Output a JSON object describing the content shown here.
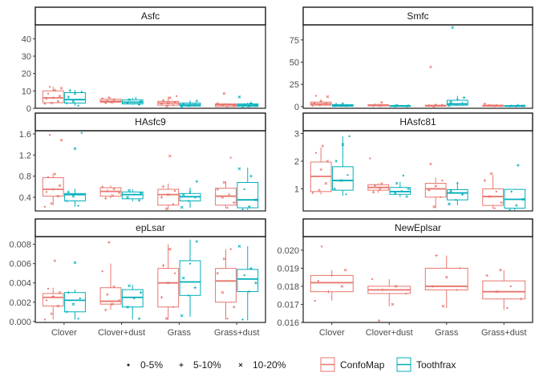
{
  "chart_data": {
    "type": "box",
    "categories": [
      "Clover",
      "Clover+dust",
      "Grass",
      "Grass+dust"
    ],
    "groups": [
      "ConfoMap",
      "Toothfrax"
    ],
    "group_colors": {
      "ConfoMap": "#E8766E",
      "Toothfrax": "#00AFBA"
    },
    "layout": "3 rows x 2 columns of facets, x labels on bottom row, legend bottom",
    "facets": [
      {
        "name": "Asfc",
        "ylim": [
          0,
          48
        ],
        "yticks": [
          "0",
          "10",
          "20",
          "30",
          "40"
        ],
        "boxes": {
          "ConfoMap": [
            {
              "category": "Clover",
              "q1": 3.2,
              "median": 6.0,
              "q3": 10.0,
              "lower": 2.5,
              "upper": 12.5,
              "points": [
                2.6,
                3.0,
                4.0,
                5.5,
                6.0,
                7.0,
                8.5,
                10.5,
                11.5,
                12.3
              ]
            },
            {
              "category": "Clover+dust",
              "q1": 3.5,
              "median": 4.0,
              "q3": 5.2,
              "lower": 3.0,
              "upper": 6.0,
              "points": [
                3.1,
                3.5,
                4.0,
                4.3,
                5.0,
                5.7,
                6.2
              ]
            },
            {
              "category": "Grass",
              "q1": 1.8,
              "median": 3.0,
              "q3": 4.0,
              "lower": 1.0,
              "upper": 6.5,
              "points": [
                1.2,
                1.8,
                2.5,
                3.0,
                3.5,
                4.5,
                6.0,
                7.0
              ]
            },
            {
              "category": "Grass+dust",
              "q1": 1.0,
              "median": 2.0,
              "q3": 2.5,
              "lower": 0.8,
              "upper": 3.0,
              "points": [
                0.9,
                1.5,
                2.0,
                2.2,
                2.8,
                8.5
              ]
            }
          ],
          "Toothfrax": [
            {
              "category": "Clover",
              "q1": 3.0,
              "median": 5.0,
              "q3": 9.0,
              "lower": 1.5,
              "upper": 10.5,
              "points": [
                1.5,
                3.0,
                4.0,
                5.0,
                6.5,
                8.5,
                9.5,
                10.2
              ]
            },
            {
              "category": "Clover+dust",
              "q1": 2.5,
              "median": 3.5,
              "q3": 4.8,
              "lower": 2.0,
              "upper": 6.0,
              "points": [
                2.2,
                3.0,
                3.5,
                4.0,
                5.0,
                5.8
              ]
            },
            {
              "category": "Grass",
              "q1": 1.3,
              "median": 2.0,
              "q3": 3.0,
              "lower": 0.8,
              "upper": 4.5,
              "points": [
                0.8,
                1.3,
                2.0,
                2.5,
                3.0,
                4.2
              ]
            },
            {
              "category": "Grass+dust",
              "q1": 1.0,
              "median": 1.8,
              "q3": 2.5,
              "lower": 0.5,
              "upper": 3.2,
              "points": [
                0.6,
                1.2,
                1.8,
                2.3,
                3.0,
                6.5
              ]
            }
          ]
        }
      },
      {
        "name": "Smfc",
        "ylim": [
          -2,
          92
        ],
        "yticks": [
          "0",
          "25",
          "50",
          "75"
        ],
        "boxes": {
          "ConfoMap": [
            {
              "category": "Clover",
              "q1": 1.5,
              "median": 3.0,
              "q3": 5.0,
              "lower": 0.5,
              "upper": 8.0,
              "points": [
                1.0,
                2.0,
                3.0,
                4.0,
                6.0,
                11.0,
                12.0
              ]
            },
            {
              "category": "Clover+dust",
              "q1": 0.8,
              "median": 1.2,
              "q3": 2.0,
              "lower": 0.5,
              "upper": 3.0,
              "points": [
                0.6,
                1.0,
                1.5,
                2.0,
                4.5
              ]
            },
            {
              "category": "Grass",
              "q1": 0.3,
              "median": 0.8,
              "q3": 1.5,
              "lower": 0.1,
              "upper": 2.5,
              "points": [
                0.2,
                0.8,
                1.2,
                1.6,
                2.0,
                44.5
              ]
            },
            {
              "category": "Grass+dust",
              "q1": 0.3,
              "median": 0.8,
              "q3": 1.5,
              "lower": 0.1,
              "upper": 2.5,
              "points": [
                0.2,
                0.8,
                1.2,
                1.8,
                3.0
              ]
            }
          ],
          "Toothfrax": [
            {
              "category": "Clover",
              "q1": 0.3,
              "median": 1.0,
              "q3": 2.0,
              "lower": 0.1,
              "upper": 3.5,
              "points": [
                0.3,
                0.8,
                1.2,
                1.8,
                2.5,
                3.0
              ]
            },
            {
              "category": "Clover+dust",
              "q1": 0.2,
              "median": 0.6,
              "q3": 1.0,
              "lower": 0.1,
              "upper": 1.5,
              "points": [
                0.2,
                0.5,
                0.7,
                1.0,
                1.3
              ]
            },
            {
              "category": "Grass",
              "q1": 1.5,
              "median": 3.0,
              "q3": 7.0,
              "lower": 0.5,
              "upper": 12.0,
              "points": [
                1.0,
                2.0,
                3.5,
                5.0,
                8.0,
                10.0,
                89.0
              ]
            },
            {
              "category": "Grass+dust",
              "q1": 0.2,
              "median": 0.6,
              "q3": 1.0,
              "lower": 0.1,
              "upper": 1.5,
              "points": [
                0.2,
                0.5,
                0.8,
                1.1,
                1.4
              ]
            }
          ]
        }
      },
      {
        "name": "HAsfc9",
        "ylim": [
          0.14,
          1.66
        ],
        "yticks": [
          "0.4",
          "0.8",
          "1.2",
          "1.6"
        ],
        "boxes": {
          "ConfoMap": [
            {
              "category": "Clover",
              "q1": 0.42,
              "median": 0.55,
              "q3": 0.77,
              "lower": 0.25,
              "upper": 0.85,
              "points": [
                0.22,
                0.28,
                0.42,
                0.5,
                0.55,
                0.62,
                0.78,
                0.84,
                1.48,
                1.58
              ]
            },
            {
              "category": "Clover+dust",
              "q1": 0.42,
              "median": 0.51,
              "q3": 0.58,
              "lower": 0.38,
              "upper": 0.62,
              "points": [
                0.38,
                0.43,
                0.48,
                0.52,
                0.56,
                0.6
              ]
            },
            {
              "category": "Grass",
              "q1": 0.25,
              "median": 0.45,
              "q3": 0.55,
              "lower": 0.17,
              "upper": 0.66,
              "points": [
                0.18,
                0.27,
                0.4,
                0.45,
                0.52,
                0.6,
                1.18
              ]
            },
            {
              "category": "Grass+dust",
              "q1": 0.25,
              "median": 0.42,
              "q3": 0.57,
              "lower": 0.19,
              "upper": 0.7,
              "points": [
                0.2,
                0.3,
                0.4,
                0.45,
                0.55,
                0.68,
                1.15
              ]
            }
          ],
          "Toothfrax": [
            {
              "category": "Clover",
              "q1": 0.33,
              "median": 0.45,
              "q3": 0.47,
              "lower": 0.22,
              "upper": 0.56,
              "points": [
                0.24,
                0.33,
                0.42,
                0.45,
                0.5,
                1.32,
                1.62
              ]
            },
            {
              "category": "Clover+dust",
              "q1": 0.37,
              "median": 0.45,
              "q3": 0.5,
              "lower": 0.32,
              "upper": 0.55,
              "points": [
                0.34,
                0.4,
                0.45,
                0.48,
                0.53
              ]
            },
            {
              "category": "Grass",
              "q1": 0.33,
              "median": 0.41,
              "q3": 0.47,
              "lower": 0.2,
              "upper": 0.58,
              "points": [
                0.21,
                0.33,
                0.4,
                0.45,
                0.5,
                0.7
              ]
            },
            {
              "category": "Grass+dust",
              "q1": 0.2,
              "median": 0.35,
              "q3": 0.68,
              "lower": 0.16,
              "upper": 0.96,
              "points": [
                0.17,
                0.22,
                0.35,
                0.55,
                0.8,
                0.94
              ]
            }
          ]
        }
      },
      {
        "name": "HAsfc81",
        "ylim": [
          0.2,
          3.1
        ],
        "yticks": [
          "1",
          "2",
          "3"
        ],
        "boxes": {
          "ConfoMap": [
            {
              "category": "Clover",
              "q1": 0.9,
              "median": 1.45,
              "q3": 1.97,
              "lower": 0.8,
              "upper": 2.5,
              "points": [
                0.85,
                0.95,
                1.2,
                1.45,
                1.7,
                2.0,
                2.3,
                2.55
              ]
            },
            {
              "category": "Clover+dust",
              "q1": 0.95,
              "median": 1.05,
              "q3": 1.15,
              "lower": 0.85,
              "upper": 1.2,
              "points": [
                0.88,
                0.98,
                1.05,
                1.12,
                1.18,
                2.1
              ]
            },
            {
              "category": "Grass",
              "q1": 0.7,
              "median": 1.0,
              "q3": 1.2,
              "lower": 0.3,
              "upper": 1.4,
              "points": [
                0.35,
                0.7,
                0.95,
                1.1,
                1.3,
                1.9
              ]
            },
            {
              "category": "Grass+dust",
              "q1": 0.4,
              "median": 0.72,
              "q3": 1.0,
              "lower": 0.28,
              "upper": 1.5,
              "points": [
                0.3,
                0.5,
                0.72,
                0.9,
                1.3,
                1.55
              ]
            }
          ],
          "Toothfrax": [
            {
              "category": "Clover",
              "q1": 0.95,
              "median": 1.3,
              "q3": 1.8,
              "lower": 0.75,
              "upper": 2.9,
              "points": [
                0.8,
                1.0,
                1.3,
                1.5,
                2.0,
                2.6,
                2.9
              ]
            },
            {
              "category": "Clover+dust",
              "q1": 0.8,
              "median": 0.9,
              "q3": 1.05,
              "lower": 0.7,
              "upper": 1.25,
              "points": [
                0.72,
                0.85,
                0.92,
                1.0,
                1.2,
                1.48
              ]
            },
            {
              "category": "Grass",
              "q1": 0.6,
              "median": 0.85,
              "q3": 0.97,
              "lower": 0.4,
              "upper": 1.25,
              "points": [
                0.45,
                0.6,
                0.8,
                0.92,
                1.2
              ]
            },
            {
              "category": "Grass+dust",
              "q1": 0.3,
              "median": 0.62,
              "q3": 0.98,
              "lower": 0.22,
              "upper": 1.0,
              "points": [
                0.24,
                0.4,
                0.62,
                0.9,
                1.85
              ]
            }
          ]
        }
      },
      {
        "name": "epLsar",
        "ylim": [
          -0.0001,
          0.0088
        ],
        "yticks": [
          "0.000",
          "0.002",
          "0.004",
          "0.006",
          "0.008"
        ],
        "boxes": {
          "ConfoMap": [
            {
              "category": "Clover",
              "q1": 0.0016,
              "median": 0.0025,
              "q3": 0.0029,
              "lower": 0.0002,
              "upper": 0.0035,
              "points": [
                0.0002,
                0.0008,
                0.0016,
                0.0022,
                0.0026,
                0.003,
                0.0034,
                0.0063
              ]
            },
            {
              "category": "Clover+dust",
              "q1": 0.0018,
              "median": 0.0021,
              "q3": 0.0035,
              "lower": 0.0012,
              "upper": 0.006,
              "points": [
                0.0012,
                0.0018,
                0.0022,
                0.0028,
                0.0036,
                0.0052,
                0.0082
              ]
            },
            {
              "category": "Grass",
              "q1": 0.0015,
              "median": 0.004,
              "q3": 0.0055,
              "lower": 0.0002,
              "upper": 0.008,
              "points": [
                0.0003,
                0.0015,
                0.0025,
                0.004,
                0.005,
                0.0058,
                0.0075
              ]
            },
            {
              "category": "Grass+dust",
              "q1": 0.002,
              "median": 0.0042,
              "q3": 0.0055,
              "lower": 0.0002,
              "upper": 0.0075,
              "points": [
                0.0003,
                0.0015,
                0.003,
                0.0042,
                0.005,
                0.0065,
                0.0075
              ]
            }
          ],
          "Toothfrax": [
            {
              "category": "Clover",
              "q1": 0.001,
              "median": 0.0022,
              "q3": 0.003,
              "lower": 0.0002,
              "upper": 0.0033,
              "points": [
                0.0003,
                0.001,
                0.0018,
                0.0024,
                0.003,
                0.0061
              ]
            },
            {
              "category": "Clover+dust",
              "q1": 0.0015,
              "median": 0.0025,
              "q3": 0.0033,
              "lower": 0.0002,
              "upper": 0.0038,
              "points": [
                0.0003,
                0.0015,
                0.0024,
                0.003,
                0.0037
              ]
            },
            {
              "category": "Grass",
              "q1": 0.0027,
              "median": 0.0041,
              "q3": 0.0063,
              "lower": 0.0005,
              "upper": 0.0085,
              "points": [
                0.0006,
                0.0027,
                0.0035,
                0.0045,
                0.006,
                0.0083
              ]
            },
            {
              "category": "Grass+dust",
              "q1": 0.0031,
              "median": 0.0044,
              "q3": 0.0054,
              "lower": 0.0001,
              "upper": 0.0078,
              "points": [
                0.0002,
                0.0031,
                0.004,
                0.0048,
                0.0055,
                0.0078
              ]
            }
          ]
        }
      },
      {
        "name": "NewEplsar",
        "ylim": [
          0.016,
          0.02075
        ],
        "yticks": [
          "0.016",
          "0.017",
          "0.018",
          "0.019",
          "0.020"
        ],
        "boxes": {
          "ConfoMap": [
            {
              "category": "Clover",
              "q1": 0.0177,
              "median": 0.0182,
              "q3": 0.0186,
              "lower": 0.0172,
              "upper": 0.0189,
              "points": [
                0.0172,
                0.0177,
                0.018,
                0.0183,
                0.0186,
                0.0189,
                0.0202
              ]
            },
            {
              "category": "Clover+dust",
              "q1": 0.0176,
              "median": 0.0178,
              "q3": 0.018,
              "lower": 0.0169,
              "upper": 0.0184,
              "points": [
                0.0161,
                0.017,
                0.0176,
                0.0178,
                0.018,
                0.0184
              ]
            },
            {
              "category": "Grass",
              "q1": 0.0178,
              "median": 0.018,
              "q3": 0.019,
              "lower": 0.0168,
              "upper": 0.0197,
              "points": [
                0.0169,
                0.0178,
                0.018,
                0.0185,
                0.019,
                0.0197
              ]
            },
            {
              "category": "Grass+dust",
              "q1": 0.0173,
              "median": 0.0177,
              "q3": 0.0183,
              "lower": 0.0167,
              "upper": 0.0189,
              "points": [
                0.0168,
                0.0173,
                0.0177,
                0.018,
                0.0186,
                0.0189
              ]
            }
          ]
        }
      }
    ],
    "legend": {
      "position": "bottom",
      "shape_legend": [
        {
          "symbol": "•",
          "label": "0-5%"
        },
        {
          "symbol": "+",
          "label": "5-10%"
        },
        {
          "symbol": "×",
          "label": "10-20%"
        }
      ],
      "color_legend": [
        "ConfoMap",
        "Toothfrax"
      ]
    }
  }
}
